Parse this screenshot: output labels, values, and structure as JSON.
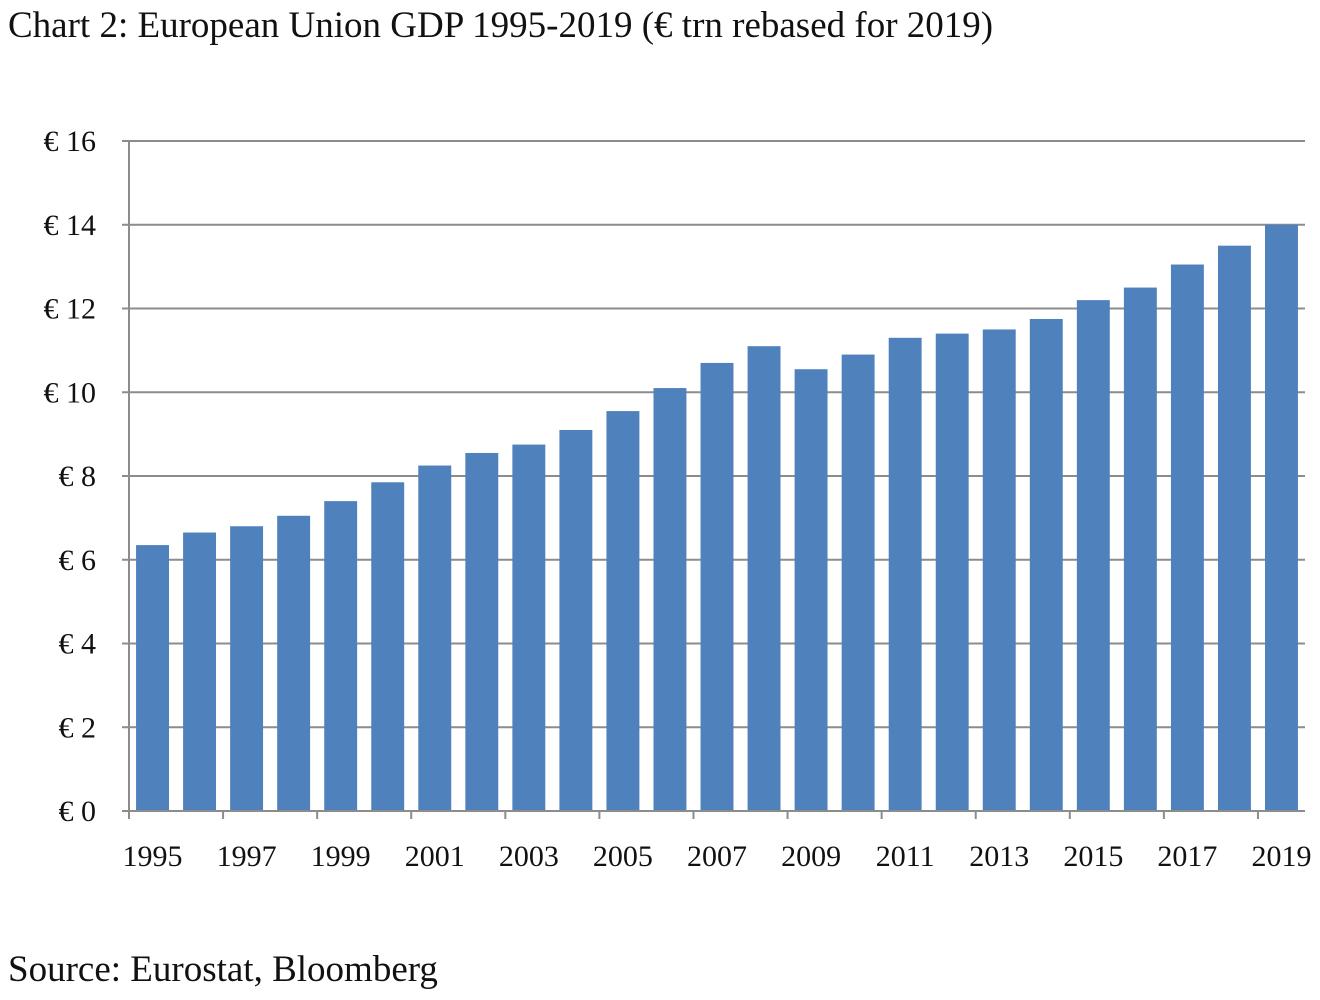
{
  "title": "Chart 2: European Union GDP 1995-2019 (€ trn rebased for 2019)",
  "source": "Source: Eurostat, Bloomberg",
  "colors": {
    "bar": "#4f81bd",
    "grid": "#8c8c8c",
    "axis": "#8c8c8c",
    "text": "#111111"
  },
  "chart_data": {
    "type": "bar",
    "title": "Chart 2: European Union GDP 1995-2019 (€ trn rebased for 2019)",
    "xlabel": "",
    "ylabel": "",
    "ylim": [
      0,
      16
    ],
    "grid": true,
    "legend": "none",
    "categories": [
      "1995",
      "1996",
      "1997",
      "1998",
      "1999",
      "2000",
      "2001",
      "2002",
      "2003",
      "2004",
      "2005",
      "2006",
      "2007",
      "2008",
      "2009",
      "2010",
      "2011",
      "2012",
      "2013",
      "2014",
      "2015",
      "2016",
      "2017",
      "2018",
      "2019"
    ],
    "values": [
      6.35,
      6.65,
      6.8,
      7.05,
      7.4,
      7.85,
      8.25,
      8.55,
      8.75,
      9.1,
      9.55,
      10.1,
      10.7,
      11.1,
      10.55,
      10.9,
      11.3,
      11.4,
      11.5,
      11.75,
      12.2,
      12.5,
      13.05,
      13.5,
      14.0
    ],
    "y_ticks": [
      0,
      2,
      4,
      6,
      8,
      10,
      12,
      14,
      16
    ],
    "y_tick_labels": [
      "€ 0",
      "€ 2",
      "€ 4",
      "€ 6",
      "€ 8",
      "€ 10",
      "€ 12",
      "€ 14",
      "€ 16"
    ],
    "x_tick_labels": [
      "1995",
      "1997",
      "1999",
      "2001",
      "2003",
      "2005",
      "2007",
      "2009",
      "2011",
      "2013",
      "2015",
      "2017",
      "2019"
    ]
  }
}
